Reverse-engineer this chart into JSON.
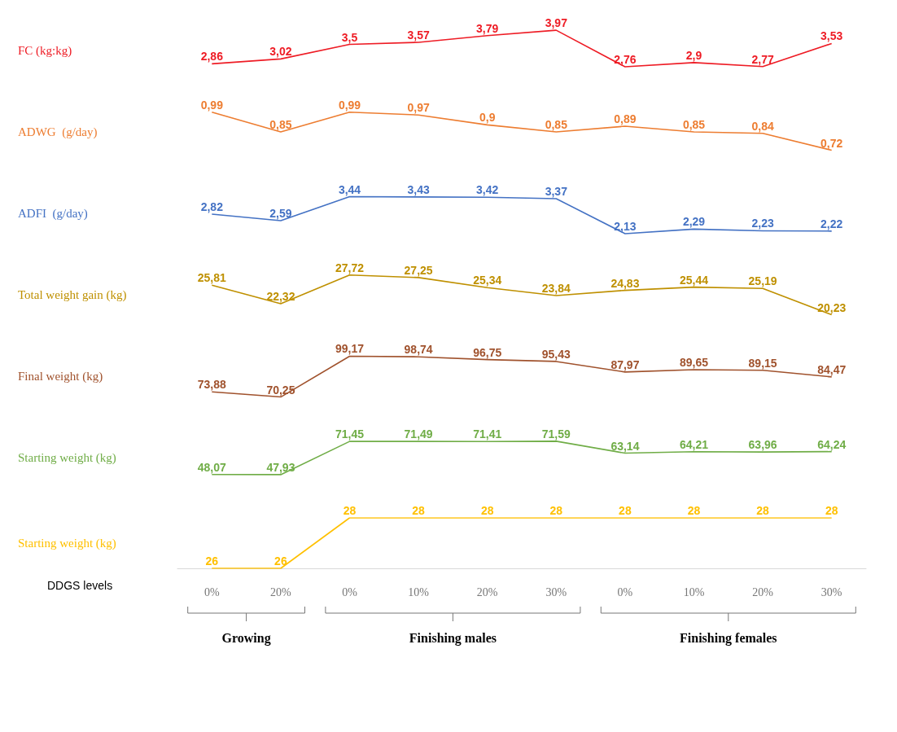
{
  "chart_data": [
    {
      "type": "line",
      "categories": [
        null,
        null,
        null,
        null,
        null,
        null,
        null,
        null,
        null,
        null
      ],
      "tick_labels": false,
      "series": [
        {
          "name": "FC (kg:kg)",
          "color": "#ee1c25",
          "values": [
            2.86,
            3.02,
            3.5,
            3.57,
            3.79,
            3.97,
            2.76,
            2.9,
            2.77,
            3.53
          ],
          "value_labels": [
            "2,86",
            "3,02",
            "3,5",
            "3,57",
            "3,79",
            "3,97",
            "2,76",
            "2,9",
            "2,77",
            "3,53"
          ]
        }
      ]
    },
    {
      "type": "line",
      "categories": [
        null,
        null,
        null,
        null,
        null,
        null,
        null,
        null,
        null,
        null
      ],
      "tick_labels": false,
      "series": [
        {
          "name": "ADWG  (g/day)",
          "color": "#ed7d31",
          "values": [
            0.99,
            0.85,
            0.99,
            0.97,
            0.9,
            0.85,
            0.89,
            0.85,
            0.84,
            0.72
          ],
          "value_labels": [
            "0,99",
            "0,85",
            "0,99",
            "0,97",
            "0,9",
            "0,85",
            "0,89",
            "0,85",
            "0,84",
            "0,72"
          ]
        }
      ]
    },
    {
      "type": "line",
      "categories": [
        null,
        null,
        null,
        null,
        null,
        null,
        null,
        null,
        null,
        null
      ],
      "tick_labels": false,
      "series": [
        {
          "name": "ADFI  (g/day)",
          "color": "#4472c4",
          "values": [
            2.82,
            2.59,
            3.44,
            3.43,
            3.42,
            3.37,
            2.13,
            2.29,
            2.23,
            2.22
          ],
          "value_labels": [
            "2,82",
            "2,59",
            "3,44",
            "3,43",
            "3,42",
            "3,37",
            "2,13",
            "2,29",
            "2,23",
            "2,22"
          ]
        }
      ]
    },
    {
      "type": "line",
      "categories": [
        null,
        null,
        null,
        null,
        null,
        null,
        null,
        null,
        null,
        null
      ],
      "tick_labels": false,
      "series": [
        {
          "name": "Total weight gain (kg)",
          "color": "#bf9000",
          "values": [
            25.81,
            22.32,
            27.72,
            27.25,
            25.34,
            23.84,
            24.83,
            25.44,
            25.19,
            20.23
          ],
          "value_labels": [
            "25,81",
            "22,32",
            "27,72",
            "27,25",
            "25,34",
            "23,84",
            "24,83",
            "25,44",
            "25,19",
            "20,23"
          ]
        }
      ]
    },
    {
      "type": "line",
      "categories": [
        null,
        null,
        null,
        null,
        null,
        null,
        null,
        null,
        null,
        null
      ],
      "tick_labels": false,
      "series": [
        {
          "name": "Final weight (kg)",
          "color": "#a0522d",
          "values": [
            73.88,
            70.25,
            99.17,
            98.74,
            96.75,
            95.43,
            87.97,
            89.65,
            89.15,
            84.47
          ],
          "value_labels": [
            "73,88",
            "70,25",
            "99,17",
            "98,74",
            "96,75",
            "95,43",
            "87,97",
            "89,65",
            "89,15",
            "84,47"
          ]
        }
      ]
    },
    {
      "type": "line",
      "categories": [
        null,
        null,
        null,
        null,
        null,
        null,
        null,
        null,
        null,
        null
      ],
      "tick_labels": false,
      "series": [
        {
          "name": "Starting weight (kg)",
          "color": "#70ad47",
          "values": [
            48.07,
            47.93,
            71.45,
            71.49,
            71.41,
            71.59,
            63.14,
            64.21,
            63.96,
            64.24
          ],
          "value_labels": [
            "48,07",
            "47,93",
            "71,45",
            "71,49",
            "71,41",
            "71,59",
            "63,14",
            "64,21",
            "63,96",
            "64,24"
          ]
        }
      ]
    },
    {
      "type": "line",
      "categories": [
        "0%",
        "20%",
        "0%",
        "10%",
        "20%",
        "30%",
        "0%",
        "10%",
        "20%",
        "30%"
      ],
      "tick_labels": "x",
      "xlabel": "DDGS levels",
      "annotations": [
        "Growing",
        "Finishing males",
        "Finishing females"
      ],
      "series": [
        {
          "name": "Starting weight (kg)",
          "color": "#ffc000",
          "values": [
            26,
            26,
            28,
            28,
            28,
            28,
            28,
            28,
            28,
            28
          ],
          "value_labels": [
            "26",
            "26",
            "28",
            "28",
            "28",
            "28",
            "28",
            "28",
            "28",
            "28"
          ]
        }
      ]
    }
  ]
}
